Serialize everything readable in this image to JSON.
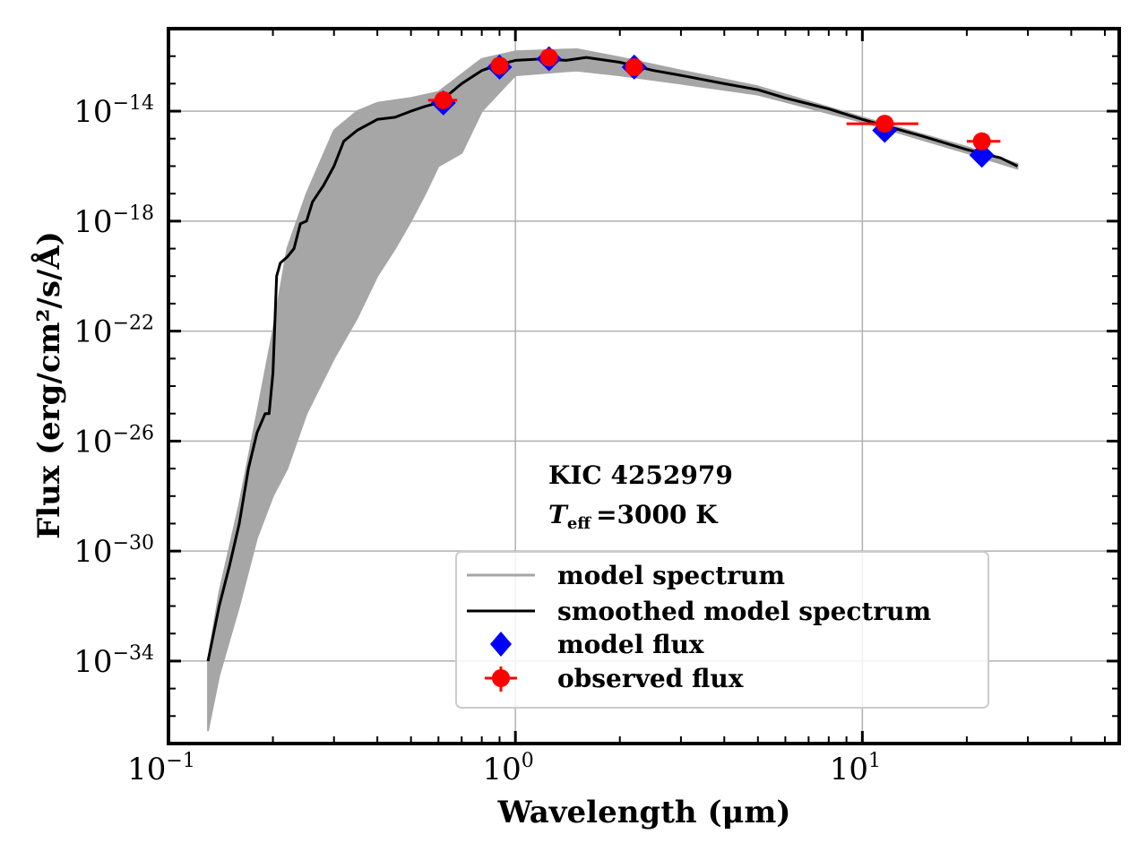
{
  "chart_data": {
    "type": "line",
    "title": "",
    "xlabel": "Wavelength (μm)",
    "ylabel": "Flux (erg/cm²/s/Å)",
    "xscale": "log",
    "yscale": "log",
    "xlim": [
      0.1,
      55
    ],
    "ylim": [
      1e-37,
      1e-11
    ],
    "grid": true,
    "x_ticks": [
      {
        "base": "10",
        "exp": "−1",
        "value": 0.1
      },
      {
        "base": "10",
        "exp": "0",
        "value": 1
      },
      {
        "base": "10",
        "exp": "1",
        "value": 10
      }
    ],
    "y_ticks": [
      {
        "base": "10",
        "exp": "−14",
        "value": 1e-14
      },
      {
        "base": "10",
        "exp": "−18",
        "value": 1e-18
      },
      {
        "base": "10",
        "exp": "−22",
        "value": 1e-22
      },
      {
        "base": "10",
        "exp": "−26",
        "value": 1e-26
      },
      {
        "base": "10",
        "exp": "−30",
        "value": 1e-30
      },
      {
        "base": "10",
        "exp": "−34",
        "value": 1e-34
      }
    ],
    "annotation": {
      "object": "KIC 4252979",
      "teff_symbol": "T",
      "teff_sub": "eff",
      "teff_value": "=3000 K"
    },
    "legend": {
      "location": "lower-right",
      "entries": [
        {
          "label": "model spectrum",
          "style": "line",
          "color": "#a6a6a6"
        },
        {
          "label": "smoothed model spectrum",
          "style": "line",
          "color": "#000000"
        },
        {
          "label": "model flux",
          "style": "diamond",
          "color": "#0000ff"
        },
        {
          "label": "observed flux",
          "style": "errorbar-circle",
          "color": "#ff0000"
        }
      ]
    },
    "series": [
      {
        "name": "smoothed model spectrum",
        "color": "#000000",
        "points": [
          [
            0.13,
            1e-34
          ],
          [
            0.14,
            1e-32
          ],
          [
            0.15,
            3e-31
          ],
          [
            0.16,
            1e-29
          ],
          [
            0.17,
            1e-27
          ],
          [
            0.18,
            2e-26
          ],
          [
            0.19,
            1e-25
          ],
          [
            0.195,
            1e-25
          ],
          [
            0.2,
            3e-24
          ],
          [
            0.205,
            1e-20
          ],
          [
            0.21,
            3e-20
          ],
          [
            0.22,
            5e-20
          ],
          [
            0.23,
            1e-19
          ],
          [
            0.24,
            8e-19
          ],
          [
            0.25,
            1e-18
          ],
          [
            0.26,
            5e-18
          ],
          [
            0.28,
            2e-17
          ],
          [
            0.3,
            1e-16
          ],
          [
            0.32,
            8e-16
          ],
          [
            0.35,
            2e-15
          ],
          [
            0.4,
            5e-15
          ],
          [
            0.45,
            6e-15
          ],
          [
            0.5,
            1e-14
          ],
          [
            0.55,
            1.5e-14
          ],
          [
            0.6,
            2e-14
          ],
          [
            0.7,
            1e-13
          ],
          [
            0.8,
            3e-13
          ],
          [
            0.9,
            5e-13
          ],
          [
            1.0,
            7e-13
          ],
          [
            1.2,
            8e-13
          ],
          [
            1.4,
            7e-13
          ],
          [
            1.6,
            9e-13
          ],
          [
            2.0,
            6e-13
          ],
          [
            2.5,
            3e-13
          ],
          [
            3.0,
            2e-13
          ],
          [
            4.0,
            1e-13
          ],
          [
            5.0,
            6e-14
          ],
          [
            6.0,
            3e-14
          ],
          [
            8.0,
            1.2e-14
          ],
          [
            10.0,
            5e-15
          ],
          [
            15.0,
            1.2e-15
          ],
          [
            20.0,
            4e-16
          ],
          [
            25.0,
            2e-16
          ],
          [
            28.0,
            1e-16
          ]
        ]
      },
      {
        "name": "model spectrum (upper envelope)",
        "color": "#a6a6a6",
        "points": [
          [
            0.13,
            1e-34
          ],
          [
            0.14,
            3e-32
          ],
          [
            0.16,
            5e-29
          ],
          [
            0.18,
            1e-25
          ],
          [
            0.2,
            1e-22
          ],
          [
            0.22,
            1e-19
          ],
          [
            0.25,
            1e-17
          ],
          [
            0.3,
            2e-15
          ],
          [
            0.35,
            1e-14
          ],
          [
            0.4,
            2e-14
          ],
          [
            0.5,
            3e-14
          ],
          [
            0.6,
            5e-14
          ],
          [
            0.8,
            8e-13
          ],
          [
            1.0,
            1.5e-12
          ],
          [
            1.5,
            1.8e-12
          ],
          [
            2.0,
            9e-13
          ],
          [
            3.0,
            3e-13
          ],
          [
            5.0,
            8e-14
          ],
          [
            10.0,
            6e-15
          ],
          [
            20.0,
            5e-16
          ],
          [
            28.0,
            1.2e-16
          ]
        ]
      },
      {
        "name": "model spectrum (lower envelope)",
        "color": "#a6a6a6",
        "points": [
          [
            0.13,
            3e-37
          ],
          [
            0.14,
            3e-35
          ],
          [
            0.16,
            1e-32
          ],
          [
            0.18,
            3e-30
          ],
          [
            0.2,
            1e-28
          ],
          [
            0.22,
            1e-27
          ],
          [
            0.25,
            1e-25
          ],
          [
            0.3,
            1e-23
          ],
          [
            0.35,
            3e-22
          ],
          [
            0.4,
            1e-20
          ],
          [
            0.45,
            1e-19
          ],
          [
            0.5,
            1e-18
          ],
          [
            0.55,
            1e-17
          ],
          [
            0.6,
            1e-16
          ],
          [
            0.7,
            3e-16
          ],
          [
            0.8,
            1e-14
          ],
          [
            1.0,
            2e-13
          ],
          [
            1.5,
            3e-13
          ],
          [
            2.0,
            2e-13
          ],
          [
            3.0,
            1e-13
          ],
          [
            5.0,
            4e-14
          ],
          [
            10.0,
            4e-15
          ],
          [
            20.0,
            3e-16
          ],
          [
            28.0,
            8e-17
          ]
        ]
      }
    ],
    "model_flux": [
      {
        "x": 0.62,
        "y": 2e-14
      },
      {
        "x": 0.9,
        "y": 4e-13
      },
      {
        "x": 1.25,
        "y": 8e-13
      },
      {
        "x": 2.2,
        "y": 4e-13
      },
      {
        "x": 11.6,
        "y": 2e-15
      },
      {
        "x": 22.1,
        "y": 2.5e-16
      }
    ],
    "observed_flux": [
      {
        "x": 0.62,
        "y": 2.5e-14,
        "xerr": [
          0.56,
          0.68
        ]
      },
      {
        "x": 0.9,
        "y": 4.5e-13,
        "xerr": [
          0.86,
          0.94
        ]
      },
      {
        "x": 1.25,
        "y": 9e-13,
        "xerr": [
          1.2,
          1.3
        ]
      },
      {
        "x": 2.2,
        "y": 4e-13,
        "xerr": [
          2.1,
          2.3
        ]
      },
      {
        "x": 11.6,
        "y": 3.5e-15,
        "xerr": [
          9.0,
          14.5
        ]
      },
      {
        "x": 22.1,
        "y": 8e-16,
        "xerr": [
          20.0,
          25.0
        ]
      }
    ]
  }
}
